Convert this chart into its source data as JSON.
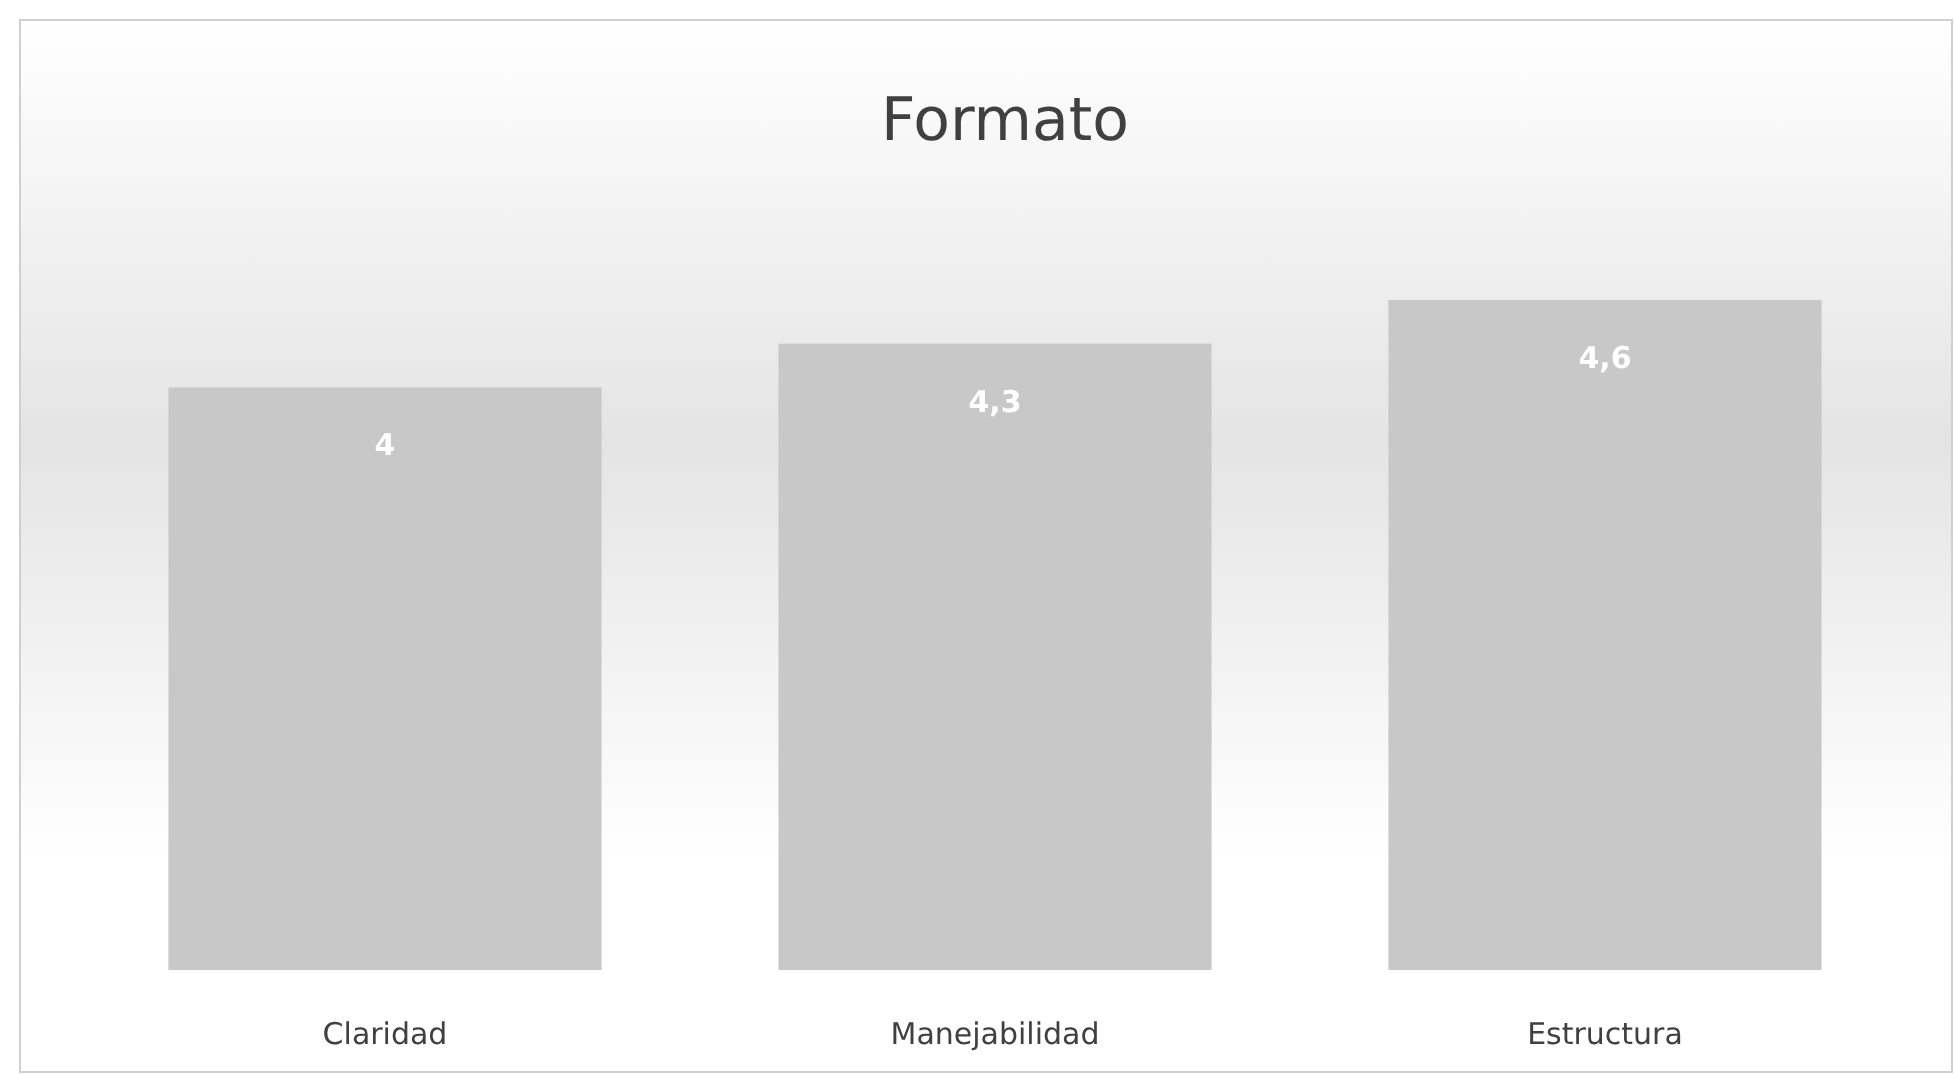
{
  "chart_data": {
    "type": "bar",
    "title": "Formato",
    "categories": [
      "Claridad",
      "Manejabilidad",
      "Estructura"
    ],
    "values": [
      4,
      4.3,
      4.6
    ],
    "value_labels": [
      "4",
      "4,3",
      "4,6"
    ],
    "color": "#c8c8c8",
    "tick_labels": "x"
  }
}
